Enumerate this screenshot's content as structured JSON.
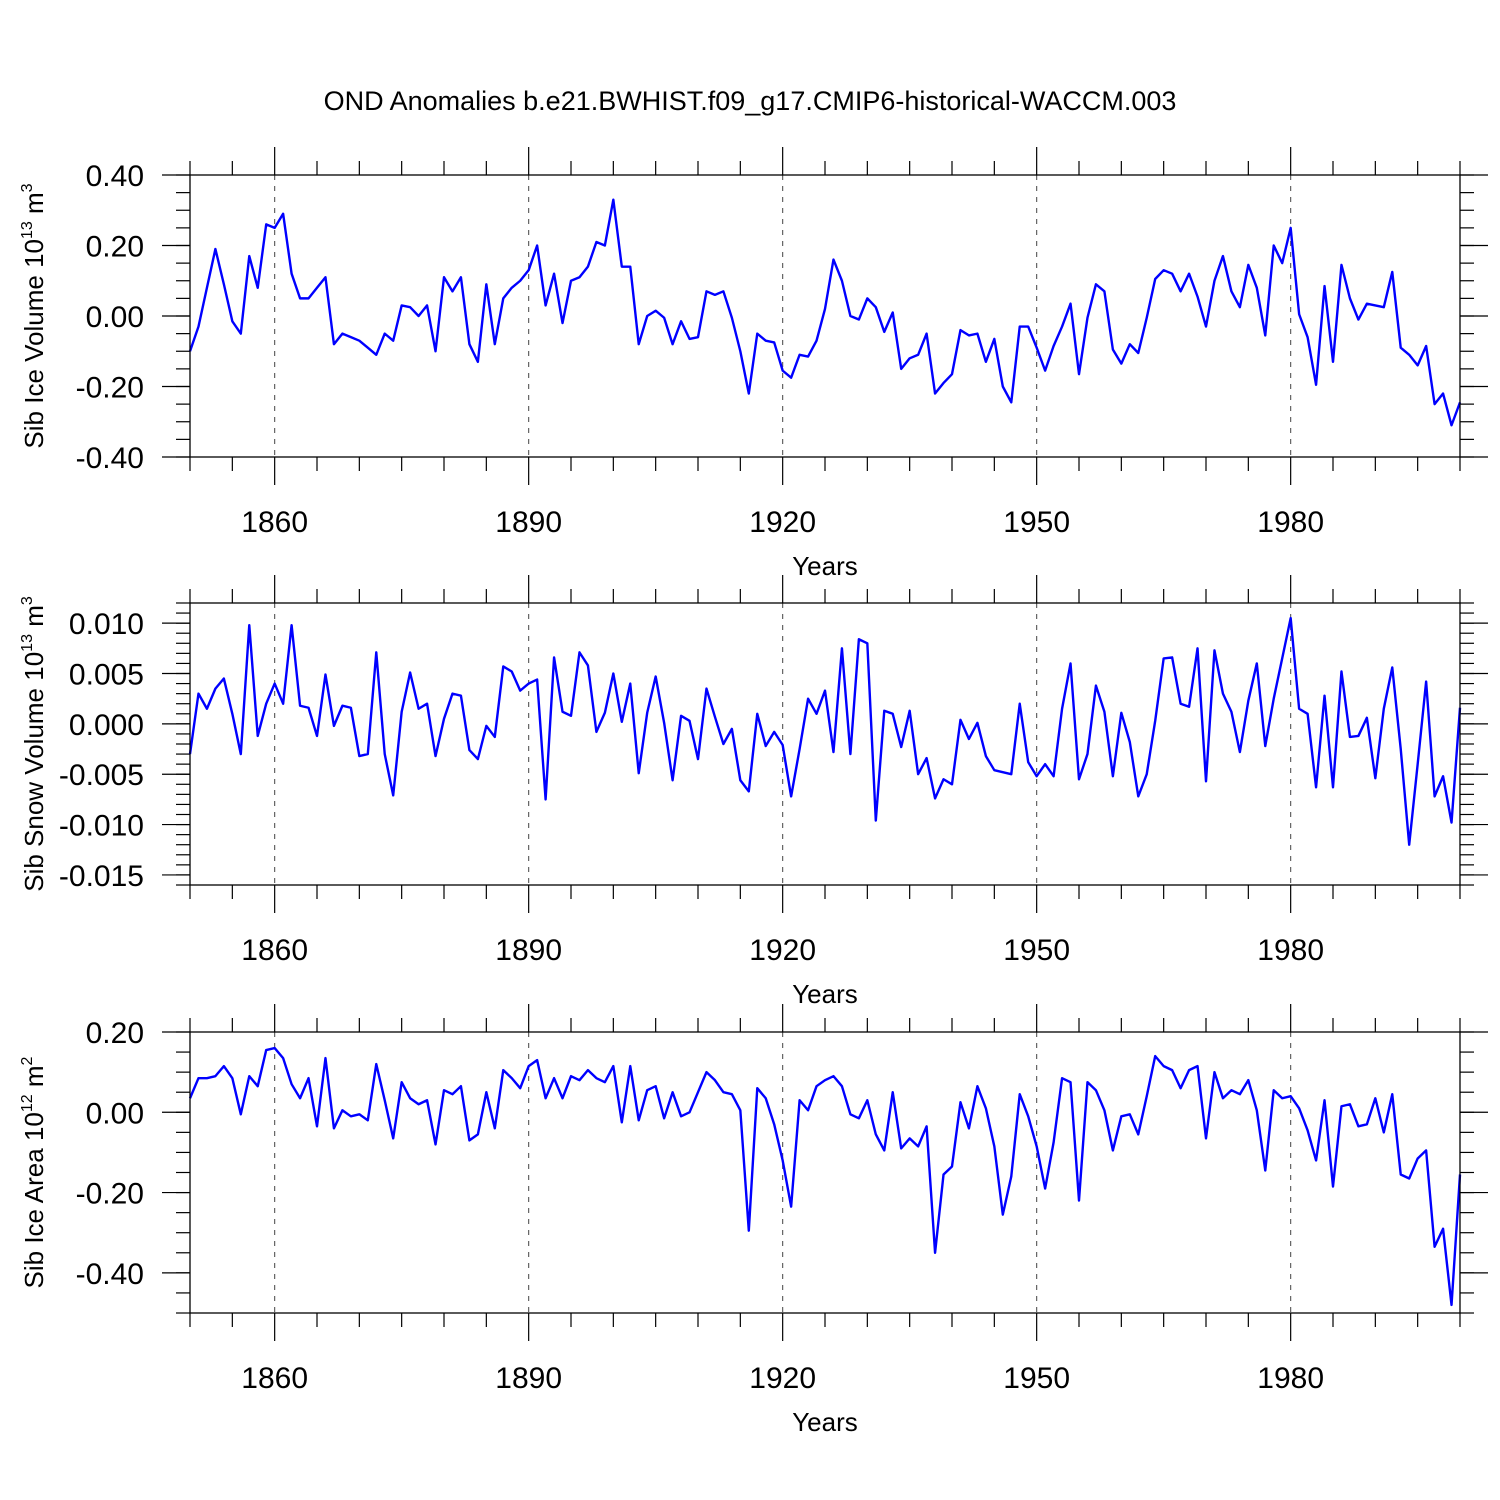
{
  "chart_data": {
    "type": "line",
    "title": "OND Anomalies b.e21.BWHIST.f09_g17.CMIP6-historical-WACCM.003",
    "line_color": "#0000ff",
    "x_start": 1850,
    "x_range": [
      1850,
      2000
    ],
    "x_ticks": [
      1860,
      1890,
      1920,
      1950,
      1980
    ],
    "panels": [
      {
        "id": "ice-volume",
        "xlabel": "Years",
        "ylabel_main": "Sib Ice Volume 10",
        "ylabel_exp": "13",
        "ylabel_unit": " m",
        "ylabel_unit_exp": "3",
        "ylim": [
          -0.4,
          0.4
        ],
        "y_ticks": [
          0.4,
          0.2,
          0.0,
          -0.2,
          -0.4
        ],
        "y_tick_labels": [
          "0.40",
          "0.20",
          "0.00",
          "-0.20",
          "-0.40"
        ],
        "y_minor_step": 0.05,
        "values": [
          -0.1,
          -0.03,
          0.08,
          0.19,
          0.09,
          -0.015,
          -0.05,
          0.17,
          0.08,
          0.26,
          0.25,
          0.29,
          0.12,
          0.05,
          0.05,
          0.08,
          0.11,
          -0.08,
          -0.05,
          -0.06,
          -0.07,
          -0.09,
          -0.11,
          -0.05,
          -0.07,
          0.03,
          0.025,
          0.0,
          0.03,
          -0.1,
          0.11,
          0.07,
          0.11,
          -0.08,
          -0.13,
          0.09,
          -0.08,
          0.05,
          0.08,
          0.1,
          0.13,
          0.2,
          0.03,
          0.12,
          -0.02,
          0.1,
          0.11,
          0.14,
          0.21,
          0.2,
          0.33,
          0.14,
          0.14,
          -0.08,
          0.0,
          0.015,
          -0.005,
          -0.08,
          -0.015,
          -0.065,
          -0.06,
          0.07,
          0.06,
          0.07,
          -0.005,
          -0.1,
          -0.22,
          -0.05,
          -0.07,
          -0.075,
          -0.155,
          -0.175,
          -0.11,
          -0.115,
          -0.07,
          0.02,
          0.16,
          0.1,
          0.0,
          -0.01,
          0.05,
          0.025,
          -0.045,
          0.01,
          -0.15,
          -0.12,
          -0.11,
          -0.05,
          -0.22,
          -0.19,
          -0.165,
          -0.04,
          -0.055,
          -0.05,
          -0.13,
          -0.065,
          -0.2,
          -0.245,
          -0.03,
          -0.03,
          -0.09,
          -0.155,
          -0.085,
          -0.03,
          0.035,
          -0.165,
          -0.005,
          0.09,
          0.07,
          -0.095,
          -0.135,
          -0.08,
          -0.105,
          -0.005,
          0.105,
          0.13,
          0.12,
          0.07,
          0.12,
          0.055,
          -0.03,
          0.1,
          0.17,
          0.07,
          0.025,
          0.145,
          0.08,
          -0.055,
          0.2,
          0.15,
          0.25,
          0.005,
          -0.06,
          -0.195,
          0.085,
          -0.13,
          0.145,
          0.05,
          -0.01,
          0.035,
          0.03,
          0.025,
          0.125,
          -0.09,
          -0.11,
          -0.14,
          -0.085,
          -0.25,
          -0.22,
          -0.31,
          -0.245
        ],
        "data_labels": []
      },
      {
        "id": "snow-volume",
        "xlabel": "Years",
        "ylabel_main": "Sib Snow Volume 10",
        "ylabel_exp": "13",
        "ylabel_unit": " m",
        "ylabel_unit_exp": "3",
        "ylim": [
          -0.016,
          0.012
        ],
        "y_ticks": [
          0.01,
          0.005,
          0.0,
          -0.005,
          -0.01,
          -0.015
        ],
        "y_tick_labels": [
          "0.010",
          "0.005",
          "0.000",
          "-0.005",
          "-0.010",
          "-0.015"
        ],
        "y_minor_step": 0.001,
        "values": [
          -0.003,
          0.003,
          0.0015,
          0.0035,
          0.0045,
          0.001,
          -0.003,
          0.0098,
          -0.0012,
          0.002,
          0.004,
          0.002,
          0.0098,
          0.0018,
          0.0016,
          -0.0012,
          0.0049,
          -0.0002,
          0.0018,
          0.0016,
          -0.0032,
          -0.003,
          0.0071,
          -0.003,
          -0.0071,
          0.0012,
          0.0051,
          0.0015,
          0.002,
          -0.0032,
          0.0005,
          0.003,
          0.0028,
          -0.0026,
          -0.0035,
          -0.0002,
          -0.0013,
          0.0057,
          0.0052,
          0.0033,
          0.004,
          0.0044,
          -0.0075,
          0.0066,
          0.0012,
          0.0008,
          0.0071,
          0.0058,
          -0.0008,
          0.0011,
          0.005,
          0.0002,
          0.004,
          -0.0049,
          0.0011,
          0.0047,
          0.0001,
          -0.0056,
          0.0008,
          0.0003,
          -0.0035,
          0.0035,
          0.0007,
          -0.002,
          -0.0005,
          -0.0056,
          -0.0067,
          0.001,
          -0.0022,
          -0.0008,
          -0.0021,
          -0.0072,
          -0.0025,
          0.0025,
          0.001,
          0.0033,
          -0.0028,
          0.0075,
          -0.003,
          0.0084,
          0.008,
          -0.0096,
          0.0013,
          0.001,
          -0.0023,
          0.0013,
          -0.005,
          -0.0034,
          -0.0074,
          -0.0055,
          -0.006,
          0.0004,
          -0.0015,
          0.0001,
          -0.0032,
          -0.0046,
          -0.0048,
          -0.005,
          0.002,
          -0.0038,
          -0.0052,
          -0.004,
          -0.0052,
          0.0015,
          0.006,
          -0.0055,
          -0.003,
          0.0038,
          0.0012,
          -0.0052,
          0.0011,
          -0.0018,
          -0.0072,
          -0.005,
          0.0003,
          0.0065,
          0.0066,
          0.002,
          0.0017,
          0.0075,
          -0.0057,
          0.0073,
          0.003,
          0.0012,
          -0.0028,
          0.0023,
          0.006,
          -0.0022,
          0.0025,
          0.0065,
          0.0105,
          0.0015,
          0.001,
          -0.0063,
          0.0028,
          -0.0063,
          0.0052,
          -0.0013,
          -0.0012,
          0.0006,
          -0.0054,
          0.0015,
          0.0056,
          -0.0025,
          -0.012,
          -0.004,
          0.0042,
          -0.0072,
          -0.0052,
          -0.0098,
          0.0016
        ],
        "data_labels": []
      },
      {
        "id": "ice-area",
        "xlabel": "Years",
        "ylabel_main": "Sib Ice Area 10",
        "ylabel_exp": "12",
        "ylabel_unit": " m",
        "ylabel_unit_exp": "2",
        "ylim": [
          -0.5,
          0.2
        ],
        "y_ticks": [
          0.2,
          0.0,
          -0.2,
          -0.4
        ],
        "y_tick_labels": [
          "0.20",
          "0.00",
          "-0.20",
          "-0.40"
        ],
        "y_minor_step": 0.05,
        "values": [
          0.035,
          0.085,
          0.085,
          0.09,
          0.115,
          0.085,
          -0.005,
          0.09,
          0.065,
          0.155,
          0.16,
          0.135,
          0.07,
          0.035,
          0.085,
          -0.035,
          0.135,
          -0.04,
          0.005,
          -0.01,
          -0.005,
          -0.02,
          0.12,
          0.03,
          -0.065,
          0.075,
          0.035,
          0.02,
          0.03,
          -0.08,
          0.055,
          0.045,
          0.065,
          -0.07,
          -0.055,
          0.05,
          -0.04,
          0.105,
          0.085,
          0.06,
          0.115,
          0.13,
          0.035,
          0.085,
          0.035,
          0.09,
          0.08,
          0.105,
          0.085,
          0.075,
          0.115,
          -0.025,
          0.115,
          -0.02,
          0.055,
          0.065,
          -0.015,
          0.05,
          -0.01,
          0.0,
          0.05,
          0.1,
          0.08,
          0.05,
          0.045,
          0.005,
          -0.295,
          0.06,
          0.035,
          -0.03,
          -0.12,
          -0.235,
          0.03,
          0.005,
          0.065,
          0.08,
          0.09,
          0.065,
          -0.005,
          -0.015,
          0.03,
          -0.055,
          -0.095,
          0.05,
          -0.09,
          -0.065,
          -0.085,
          -0.035,
          -0.35,
          -0.155,
          -0.135,
          0.025,
          -0.04,
          0.065,
          0.01,
          -0.085,
          -0.255,
          -0.16,
          0.045,
          -0.01,
          -0.085,
          -0.19,
          -0.075,
          0.085,
          0.075,
          -0.22,
          0.075,
          0.055,
          0.005,
          -0.095,
          -0.01,
          -0.005,
          -0.055,
          0.04,
          0.14,
          0.115,
          0.105,
          0.06,
          0.105,
          0.115,
          -0.065,
          0.1,
          0.035,
          0.055,
          0.045,
          0.08,
          0.005,
          -0.145,
          0.055,
          0.035,
          0.04,
          0.01,
          -0.045,
          -0.12,
          0.03,
          -0.185,
          0.015,
          0.02,
          -0.035,
          -0.03,
          0.035,
          -0.05,
          0.045,
          -0.155,
          -0.165,
          -0.115,
          -0.095,
          -0.335,
          -0.29,
          -0.48,
          -0.155
        ],
        "data_labels": []
      }
    ]
  }
}
